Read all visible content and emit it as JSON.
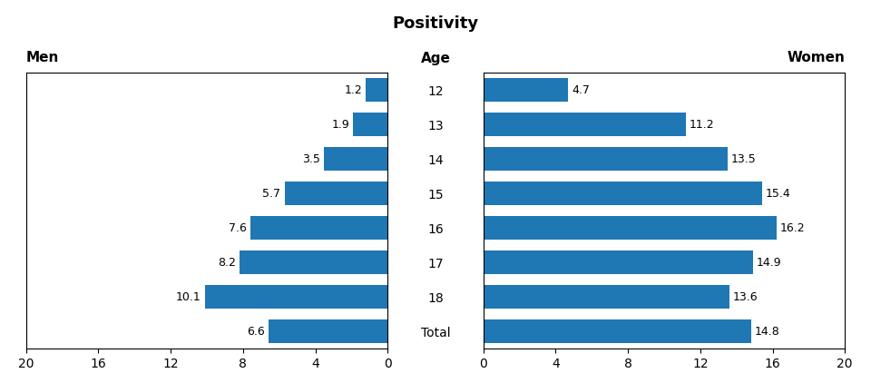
{
  "chart_data": {
    "type": "bar",
    "orientation": "horizontal",
    "title": "Positivity",
    "ylabel": "Age",
    "categories": [
      "12",
      "13",
      "14",
      "15",
      "16",
      "17",
      "18",
      "Total"
    ],
    "series": [
      {
        "name": "Men",
        "values": [
          1.2,
          1.9,
          3.5,
          5.7,
          7.6,
          8.2,
          10.1,
          6.6
        ]
      },
      {
        "name": "Women",
        "values": [
          4.7,
          11.2,
          13.5,
          15.4,
          16.2,
          14.9,
          13.6,
          14.8
        ]
      }
    ],
    "xlim": [
      0,
      20
    ],
    "xticks": [
      0,
      4,
      8,
      12,
      16,
      20
    ],
    "data_labels": true
  }
}
